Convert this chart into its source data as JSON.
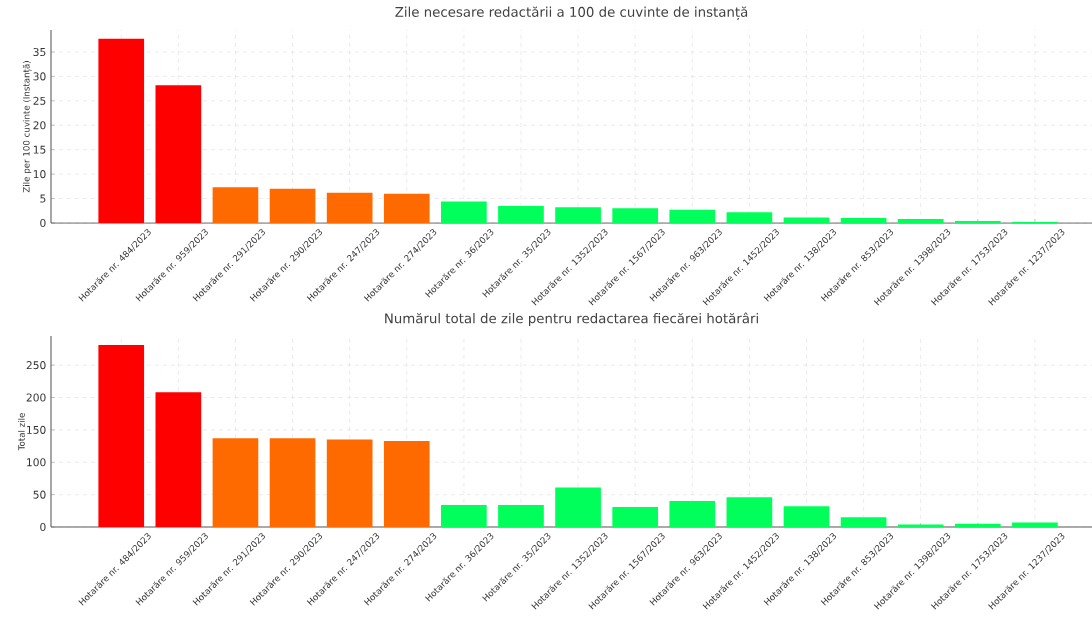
{
  "chart_data": [
    {
      "type": "bar",
      "title": "Zile necesare redactării a 100 de cuvinte de instanță",
      "ylabel": "Zile per 100 cuvinte (Instanță)",
      "categories": [
        "Hotarăre nr. 484/2023",
        "Hotarăre nr. 959/2023",
        "Hotarăre nr. 291/2023",
        "Hotarăre nr. 290/2023",
        "Hotarăre nr. 247/2023",
        "Hotarăre nr. 274/2023",
        "Hotarăre nr. 36/2023",
        "Hotarăre nr. 35/2023",
        "Hotarăre nr. 1352/2023",
        "Hotarăre nr. 1567/2023",
        "Hotarăre nr. 963/2023",
        "Hotarăre nr. 1452/2023",
        "Hotarăre nr. 138/2023",
        "Hotarăre nr. 853/2023",
        "Hotarăre nr. 1398/2023",
        "Hotarăre nr. 1753/2023",
        "Hotarăre nr. 1237/2023"
      ],
      "values": [
        37.7,
        28.2,
        7.3,
        7.0,
        6.2,
        6.0,
        4.4,
        3.5,
        3.2,
        3.0,
        2.7,
        2.2,
        1.1,
        1.0,
        0.8,
        0.4,
        0.2
      ],
      "colors": [
        "#ff0000",
        "#ff0000",
        "#ff6a00",
        "#ff6a00",
        "#ff6a00",
        "#ff6a00",
        "#00ff5a",
        "#00ff5a",
        "#00ff5a",
        "#00ff5a",
        "#00ff5a",
        "#00ff5a",
        "#00ff5a",
        "#00ff5a",
        "#00ff5a",
        "#00ff5a",
        "#00ff5a"
      ],
      "ylim": [
        0,
        39.5
      ],
      "yticks": [
        0,
        5,
        10,
        15,
        20,
        25,
        30,
        35
      ],
      "grid": true
    },
    {
      "type": "bar",
      "title": "Numărul total de zile pentru redactarea fiecărei hotărâri",
      "ylabel": "Total zile",
      "categories": [
        "Hotarăre nr. 484/2023",
        "Hotarăre nr. 959/2023",
        "Hotarăre nr. 291/2023",
        "Hotarăre nr. 290/2023",
        "Hotarăre nr. 247/2023",
        "Hotarăre nr. 274/2023",
        "Hotarăre nr. 36/2023",
        "Hotarăre nr. 35/2023",
        "Hotarăre nr. 1352/2023",
        "Hotarăre nr. 1567/2023",
        "Hotarăre nr. 963/2023",
        "Hotarăre nr. 1452/2023",
        "Hotarăre nr. 138/2023",
        "Hotarăre nr. 853/2023",
        "Hotarăre nr. 1398/2023",
        "Hotarăre nr. 1753/2023",
        "Hotarăre nr. 1237/2023"
      ],
      "values": [
        281,
        208,
        137,
        137,
        135,
        133,
        34,
        34,
        61,
        31,
        40,
        46,
        32,
        15,
        4,
        5,
        7
      ],
      "colors": [
        "#ff0000",
        "#ff0000",
        "#ff6a00",
        "#ff6a00",
        "#ff6a00",
        "#ff6a00",
        "#00ff5a",
        "#00ff5a",
        "#00ff5a",
        "#00ff5a",
        "#00ff5a",
        "#00ff5a",
        "#00ff5a",
        "#00ff5a",
        "#00ff5a",
        "#00ff5a",
        "#00ff5a"
      ],
      "ylim": [
        0,
        295
      ],
      "yticks": [
        0,
        50,
        100,
        150,
        200,
        250
      ],
      "grid": true
    }
  ]
}
